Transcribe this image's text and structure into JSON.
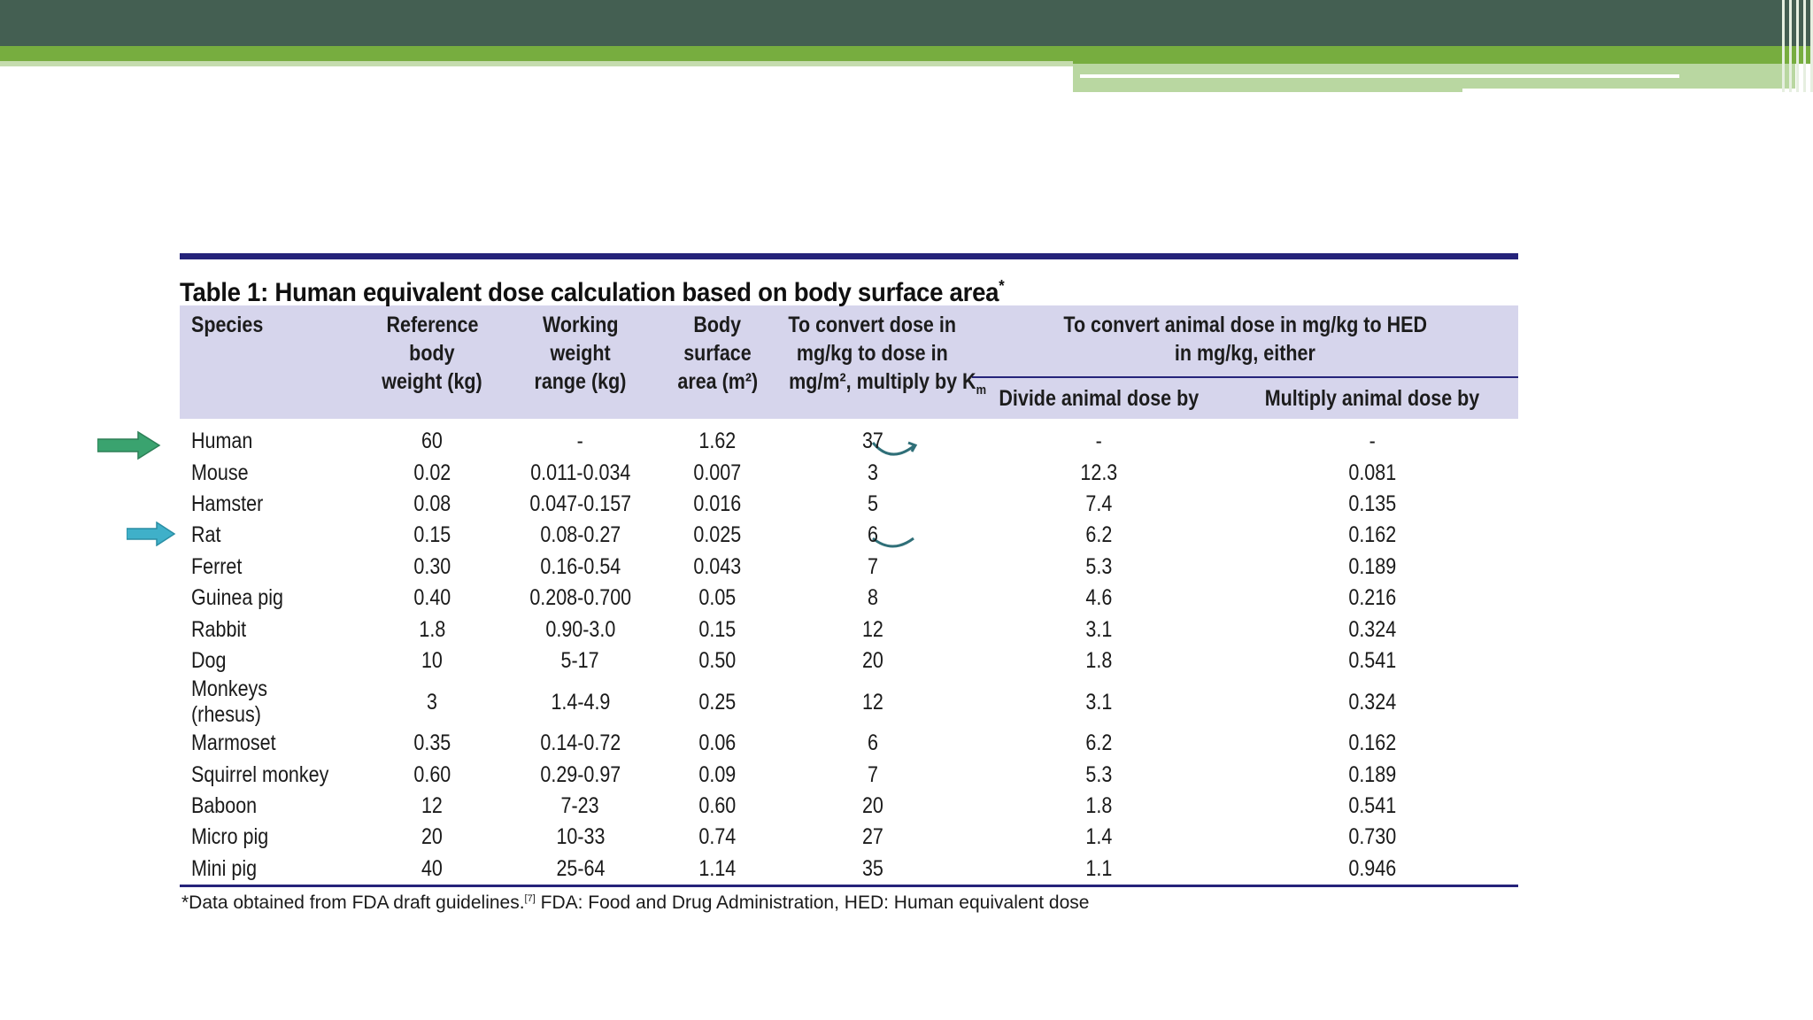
{
  "colors": {
    "header_bar_dark": "#445f52",
    "header_bar_green": "#77ad3f",
    "table_rule": "#25237a",
    "table_header_bg": "#d6d5ec",
    "arrow_human": "#3aa36f",
    "arrow_rat": "#3fb0c9"
  },
  "table": {
    "caption": "Table 1: Human equivalent dose calculation based on body surface area",
    "caption_mark": "*",
    "headers": {
      "species": "Species",
      "ref_weight_l1": "Reference",
      "ref_weight_l2": "body",
      "ref_weight_l3": "weight (kg)",
      "working_l1": "Working",
      "working_l2": "weight",
      "working_l3": "range (kg)",
      "bsa_l1": "Body",
      "bsa_l2": "surface",
      "bsa_l3": "area (m²)",
      "km_l1": "To convert dose in",
      "km_l2": "mg/kg to dose in",
      "km_l3": "mg/m², multiply by K",
      "km_sub": "m",
      "hed_l1": "To convert animal dose in mg/kg to HED",
      "hed_l2": "in mg/kg, either",
      "divide": "Divide animal dose by",
      "multiply": "Multiply animal dose by"
    },
    "rows": [
      {
        "species": "Human",
        "ref": "60",
        "range": "-",
        "bsa": "1.62",
        "km": "37",
        "divide": "-",
        "multiply": "-"
      },
      {
        "species": "Mouse",
        "ref": "0.02",
        "range": "0.011-0.034",
        "bsa": "0.007",
        "km": "3",
        "divide": "12.3",
        "multiply": "0.081"
      },
      {
        "species": "Hamster",
        "ref": "0.08",
        "range": "0.047-0.157",
        "bsa": "0.016",
        "km": "5",
        "divide": "7.4",
        "multiply": "0.135"
      },
      {
        "species": "Rat",
        "ref": "0.15",
        "range": "0.08-0.27",
        "bsa": "0.025",
        "km": "6",
        "divide": "6.2",
        "multiply": "0.162"
      },
      {
        "species": "Ferret",
        "ref": "0.30",
        "range": "0.16-0.54",
        "bsa": "0.043",
        "km": "7",
        "divide": "5.3",
        "multiply": "0.189"
      },
      {
        "species": "Guinea pig",
        "ref": "0.40",
        "range": "0.208-0.700",
        "bsa": "0.05",
        "km": "8",
        "divide": "4.6",
        "multiply": "0.216"
      },
      {
        "species": "Rabbit",
        "ref": "1.8",
        "range": "0.90-3.0",
        "bsa": "0.15",
        "km": "12",
        "divide": "3.1",
        "multiply": "0.324"
      },
      {
        "species": "Dog",
        "ref": "10",
        "range": "5-17",
        "bsa": "0.50",
        "km": "20",
        "divide": "1.8",
        "multiply": "0.541"
      },
      {
        "species": "Monkeys (rhesus)",
        "ref": "3",
        "range": "1.4-4.9",
        "bsa": "0.25",
        "km": "12",
        "divide": "3.1",
        "multiply": "0.324"
      },
      {
        "species": "Marmoset",
        "ref": "0.35",
        "range": "0.14-0.72",
        "bsa": "0.06",
        "km": "6",
        "divide": "6.2",
        "multiply": "0.162"
      },
      {
        "species": "Squirrel monkey",
        "ref": "0.60",
        "range": "0.29-0.97",
        "bsa": "0.09",
        "km": "7",
        "divide": "5.3",
        "multiply": "0.189"
      },
      {
        "species": "Baboon",
        "ref": "12",
        "range": "7-23",
        "bsa": "0.60",
        "km": "20",
        "divide": "1.8",
        "multiply": "0.541"
      },
      {
        "species": "Micro pig",
        "ref": "20",
        "range": "10-33",
        "bsa": "0.74",
        "km": "27",
        "divide": "1.4",
        "multiply": "0.730"
      },
      {
        "species": "Mini pig",
        "ref": "40",
        "range": "25-64",
        "bsa": "1.14",
        "km": "35",
        "divide": "1.1",
        "multiply": "0.946"
      }
    ],
    "footnote_a": "*Data obtained from FDA draft guidelines.",
    "footnote_ref": "[7]",
    "footnote_b": " FDA: Food and Drug Administration, HED: Human equivalent dose"
  }
}
